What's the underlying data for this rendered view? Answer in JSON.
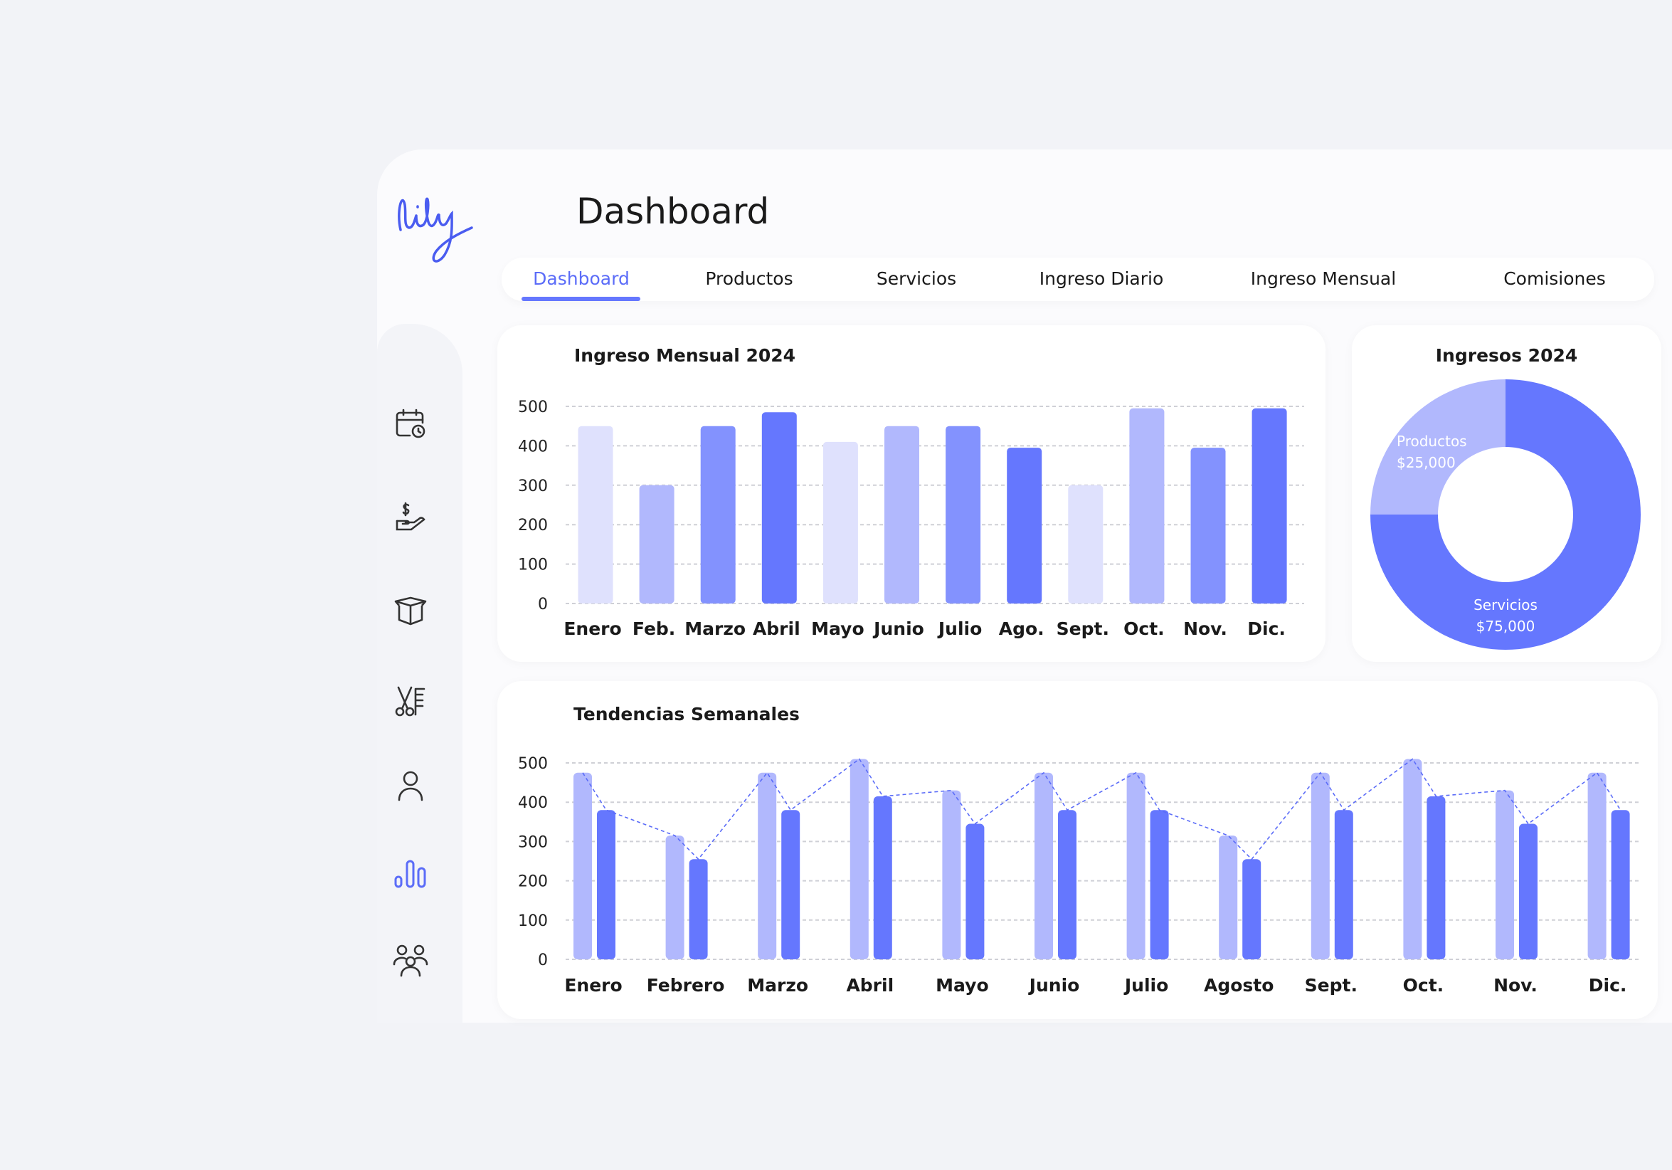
{
  "logo": "lily",
  "header": {
    "title": "Dashboard"
  },
  "tabs": [
    {
      "label": "Dashboard",
      "active": true
    },
    {
      "label": "Productos"
    },
    {
      "label": "Servicios"
    },
    {
      "label": "Ingreso Diario"
    },
    {
      "label": "Ingreso Mensual"
    },
    {
      "label": "Comisiones"
    }
  ],
  "sidebar": {
    "items": [
      {
        "icon": "calendar-clock-icon"
      },
      {
        "icon": "hand-dollar-icon"
      },
      {
        "icon": "box-icon"
      },
      {
        "icon": "scissors-comb-icon"
      },
      {
        "icon": "user-icon"
      },
      {
        "icon": "bar-chart-icon",
        "active": true
      },
      {
        "icon": "users-group-icon"
      }
    ]
  },
  "colors": {
    "lightest": "#dfe1fd",
    "light": "#b1b8fd",
    "medium": "#8392fe",
    "dark": "#6577fe",
    "accent": "#5b6cf8"
  },
  "chart_data": [
    {
      "type": "bar",
      "title": "Ingreso Mensual 2024",
      "categories": [
        "Enero",
        "Feb.",
        "Marzo",
        "Abril",
        "Mayo",
        "Junio",
        "Julio",
        "Ago.",
        "Sept.",
        "Oct.",
        "Nov.",
        "Dic."
      ],
      "values": [
        450,
        300,
        450,
        485,
        410,
        450,
        450,
        395,
        300,
        495,
        395,
        495
      ],
      "yticks": [
        "0",
        "100",
        "200",
        "300",
        "400",
        "500"
      ],
      "ylim": [
        0,
        500
      ],
      "grid": true
    },
    {
      "type": "pie",
      "title": "Ingresos 2024",
      "donut": true,
      "slices": [
        {
          "label": "Productos",
          "value": 25000,
          "display": "$25,000"
        },
        {
          "label": "Servicios",
          "value": 75000,
          "display": "$75,000"
        }
      ]
    },
    {
      "type": "bar",
      "title": "Tendencias Semanales",
      "categories": [
        "Enero",
        "Febrero",
        "Marzo",
        "Abril",
        "Mayo",
        "Junio",
        "Julio",
        "Agosto",
        "Sept.",
        "Oct.",
        "Nov.",
        "Dic."
      ],
      "series": [
        {
          "values": [
            475,
            315,
            475,
            510,
            430,
            475,
            475,
            315,
            475,
            510,
            430,
            475
          ]
        },
        {
          "values": [
            380,
            255,
            380,
            415,
            345,
            380,
            380,
            255,
            380,
            415,
            345,
            380
          ]
        }
      ],
      "trend_line": "dashed",
      "yticks": [
        "0",
        "100",
        "200",
        "300",
        "400",
        "500"
      ],
      "ylim": [
        0,
        500
      ],
      "grid": true
    }
  ]
}
